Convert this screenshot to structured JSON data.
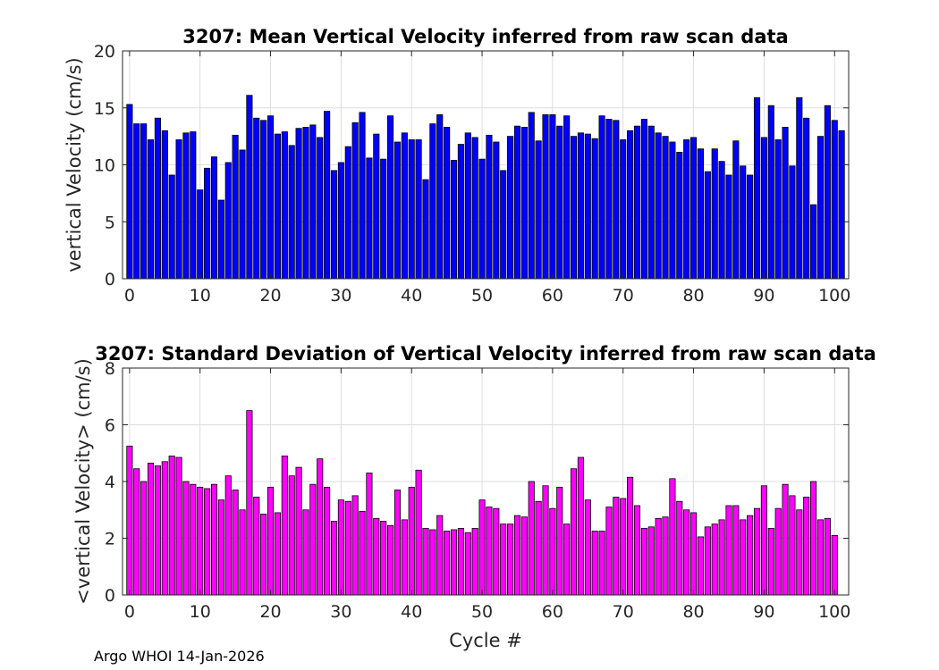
{
  "footer": "Argo WHOI 14-Jan-2026",
  "chart_data": [
    {
      "type": "bar",
      "title": "3207: Mean Vertical Velocity inferred from raw scan data",
      "xlabel": "",
      "ylabel": "vertical Velocity (cm/s)",
      "xlim": [
        -1,
        102
      ],
      "ylim": [
        0,
        20
      ],
      "xticks": [
        0,
        10,
        20,
        30,
        40,
        50,
        60,
        70,
        80,
        90,
        100
      ],
      "yticks": [
        0,
        5,
        10,
        15,
        20
      ],
      "grid": true,
      "color": "#0000ff",
      "x_start": 0,
      "values": [
        15.3,
        13.6,
        13.6,
        12.2,
        14.1,
        13.0,
        9.1,
        12.2,
        12.8,
        12.9,
        7.8,
        9.7,
        10.7,
        6.9,
        10.2,
        12.6,
        11.3,
        16.1,
        14.1,
        13.9,
        14.3,
        12.7,
        12.9,
        11.7,
        13.2,
        13.3,
        13.5,
        12.4,
        14.7,
        9.5,
        10.2,
        11.6,
        13.7,
        14.6,
        10.6,
        12.7,
        10.5,
        14.3,
        12.0,
        12.8,
        12.2,
        12.2,
        8.7,
        13.6,
        14.4,
        13.3,
        10.4,
        11.8,
        12.8,
        12.4,
        10.5,
        12.6,
        12.0,
        9.5,
        12.5,
        13.4,
        13.3,
        14.6,
        12.1,
        14.4,
        14.4,
        13.4,
        14.3,
        12.5,
        12.8,
        12.7,
        12.3,
        14.3,
        14.0,
        13.9,
        12.2,
        13.0,
        13.4,
        14.0,
        13.4,
        12.8,
        12.5,
        12.0,
        11.1,
        12.2,
        12.4,
        11.4,
        9.4,
        11.4,
        10.3,
        9.1,
        12.1,
        9.9,
        9.1,
        15.9,
        12.4,
        15.2,
        12.2,
        13.3,
        9.9,
        15.9,
        14.1,
        6.5,
        12.5,
        15.2,
        13.9,
        13.0
      ]
    },
    {
      "type": "bar",
      "title": "3207: Standard Deviation of Vertical Velocity inferred from raw scan data",
      "xlabel": "Cycle #",
      "ylabel": "<vertical Velocity> (cm/s)",
      "xlim": [
        -1,
        102
      ],
      "ylim": [
        0,
        8
      ],
      "xticks": [
        0,
        10,
        20,
        30,
        40,
        50,
        60,
        70,
        80,
        90,
        100
      ],
      "yticks": [
        0,
        2,
        4,
        6,
        8
      ],
      "grid": true,
      "color": "#ff00ff",
      "x_start": 0,
      "values": [
        5.25,
        4.45,
        4.0,
        4.65,
        4.55,
        4.7,
        4.9,
        4.85,
        4.0,
        3.9,
        3.8,
        3.75,
        3.9,
        3.35,
        4.2,
        3.7,
        3.0,
        6.5,
        3.45,
        2.85,
        3.8,
        2.9,
        4.9,
        4.2,
        4.5,
        3.0,
        3.9,
        4.8,
        3.8,
        2.6,
        3.35,
        3.3,
        3.5,
        2.95,
        4.3,
        2.7,
        2.6,
        2.45,
        3.7,
        2.65,
        3.8,
        4.4,
        2.35,
        2.3,
        2.8,
        2.25,
        2.3,
        2.35,
        2.2,
        2.35,
        3.35,
        3.1,
        3.05,
        2.5,
        2.5,
        2.8,
        2.75,
        4.0,
        3.3,
        3.85,
        3.05,
        3.8,
        2.5,
        4.45,
        4.85,
        3.35,
        2.25,
        2.25,
        3.1,
        3.45,
        3.4,
        4.15,
        3.15,
        2.35,
        2.4,
        2.7,
        2.75,
        4.1,
        3.3,
        3.0,
        2.9,
        2.05,
        2.4,
        2.5,
        2.65,
        3.15,
        3.15,
        2.65,
        2.8,
        3.05,
        3.85,
        2.35,
        3.05,
        3.9,
        3.5,
        3.0,
        3.45,
        4.0,
        2.65,
        2.7,
        2.1
      ]
    }
  ]
}
